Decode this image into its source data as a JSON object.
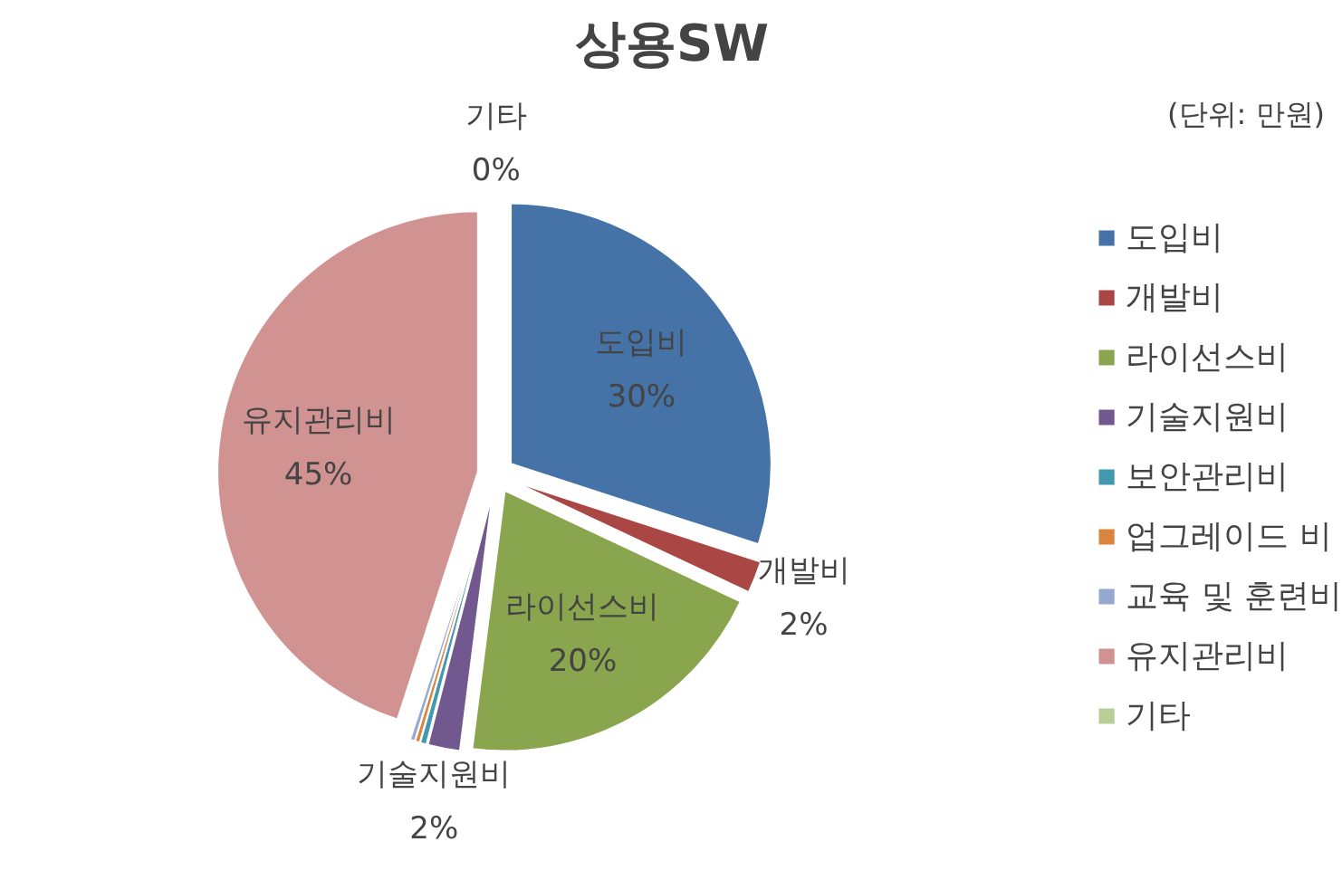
{
  "chart_data": {
    "type": "pie",
    "title": "상용SW",
    "annotations": [
      "(단위: 만원)"
    ],
    "categories": [
      "도입비",
      "개발비",
      "라이선스비",
      "기술지원비",
      "보안관리비",
      "업그레이드 비",
      "교육 및 훈련비",
      "유지관리비",
      "기타"
    ],
    "values": [
      30,
      2,
      20,
      2,
      0.4,
      0.3,
      0.3,
      45,
      0
    ],
    "colors": [
      "#4572a7",
      "#aa4643",
      "#89a54e",
      "#71588f",
      "#4198af",
      "#db843d",
      "#93a9cf",
      "#d19392",
      "#b9cd96"
    ],
    "value_labels": [
      "30%",
      "2%",
      "20%",
      "2%",
      null,
      null,
      null,
      "45%",
      "0%"
    ],
    "legend": "right"
  }
}
